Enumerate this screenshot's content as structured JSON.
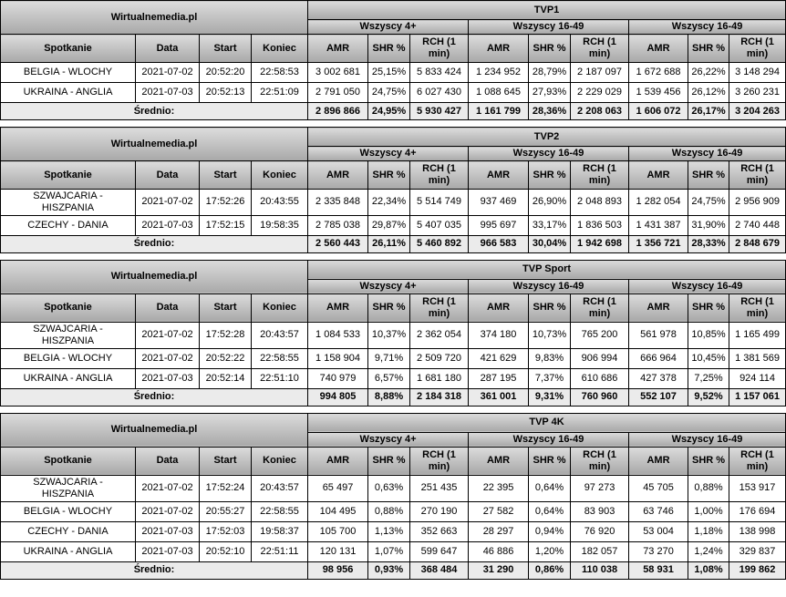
{
  "source_label": "Wirtualnemedia.pl",
  "average_label": "Średnio:",
  "groups": [
    "Wszyscy 4+",
    "Wszyscy 16-49",
    "Wszyscy 16-49"
  ],
  "columns": {
    "match": "Spotkanie",
    "date": "Data",
    "start": "Start",
    "end": "Koniec",
    "amr": "AMR",
    "shr": "SHR %",
    "rch": "RCH (1 min)"
  },
  "tables": [
    {
      "channel": "TVP1",
      "rows": [
        {
          "match": "BELGIA - WLOCHY",
          "date": "2021-07-02",
          "start": "20:52:20",
          "end": "22:58:53",
          "values": [
            "3 002 681",
            "25,15%",
            "5 833 424",
            "1 234 952",
            "28,79%",
            "2 187 097",
            "1 672 688",
            "26,22%",
            "3 148 294"
          ]
        },
        {
          "match": "UKRAINA - ANGLIA",
          "date": "2021-07-03",
          "start": "20:52:13",
          "end": "22:51:09",
          "values": [
            "2 791 050",
            "24,75%",
            "6 027 430",
            "1 088 645",
            "27,93%",
            "2 229 029",
            "1 539 456",
            "26,12%",
            "3 260 231"
          ]
        }
      ],
      "average": [
        "2 896 866",
        "24,95%",
        "5 930 427",
        "1 161 799",
        "28,36%",
        "2 208 063",
        "1 606 072",
        "26,17%",
        "3 204 263"
      ]
    },
    {
      "channel": "TVP2",
      "rows": [
        {
          "match": "SZWAJCARIA -\nHISZPANIA",
          "date": "2021-07-02",
          "start": "17:52:26",
          "end": "20:43:55",
          "values": [
            "2 335 848",
            "22,34%",
            "5 514 749",
            "937 469",
            "26,90%",
            "2 048 893",
            "1 282 054",
            "24,75%",
            "2 956 909"
          ]
        },
        {
          "match": "CZECHY - DANIA",
          "date": "2021-07-03",
          "start": "17:52:15",
          "end": "19:58:35",
          "values": [
            "2 785 038",
            "29,87%",
            "5 407 035",
            "995 697",
            "33,17%",
            "1 836 503",
            "1 431 387",
            "31,90%",
            "2 740 448"
          ]
        }
      ],
      "average": [
        "2 560 443",
        "26,11%",
        "5 460 892",
        "966 583",
        "30,04%",
        "1 942 698",
        "1 356 721",
        "28,33%",
        "2 848 679"
      ]
    },
    {
      "channel": "TVP Sport",
      "rows": [
        {
          "match": "SZWAJCARIA -\nHISZPANIA",
          "date": "2021-07-02",
          "start": "17:52:28",
          "end": "20:43:57",
          "values": [
            "1 084 533",
            "10,37%",
            "2 362 054",
            "374 180",
            "10,73%",
            "765 200",
            "561 978",
            "10,85%",
            "1 165 499"
          ]
        },
        {
          "match": "BELGIA - WLOCHY",
          "date": "2021-07-02",
          "start": "20:52:22",
          "end": "22:58:55",
          "values": [
            "1 158 904",
            "9,71%",
            "2 509 720",
            "421 629",
            "9,83%",
            "906 994",
            "666 964",
            "10,45%",
            "1 381 569"
          ]
        },
        {
          "match": "UKRAINA - ANGLIA",
          "date": "2021-07-03",
          "start": "20:52:14",
          "end": "22:51:10",
          "values": [
            "740 979",
            "6,57%",
            "1 681 180",
            "287 195",
            "7,37%",
            "610 686",
            "427 378",
            "7,25%",
            "924 114"
          ]
        }
      ],
      "average": [
        "994 805",
        "8,88%",
        "2 184 318",
        "361 001",
        "9,31%",
        "760 960",
        "552 107",
        "9,52%",
        "1 157 061"
      ]
    },
    {
      "channel": "TVP 4K",
      "rows": [
        {
          "match": "SZWAJCARIA -\nHISZPANIA",
          "date": "2021-07-02",
          "start": "17:52:24",
          "end": "20:43:57",
          "values": [
            "65 497",
            "0,63%",
            "251 435",
            "22 395",
            "0,64%",
            "97 273",
            "45 705",
            "0,88%",
            "153 917"
          ]
        },
        {
          "match": "BELGIA - WLOCHY",
          "date": "2021-07-02",
          "start": "20:55:27",
          "end": "22:58:55",
          "values": [
            "104 495",
            "0,88%",
            "270 190",
            "27 582",
            "0,64%",
            "83 903",
            "63 746",
            "1,00%",
            "176 694"
          ]
        },
        {
          "match": "CZECHY - DANIA",
          "date": "2021-07-03",
          "start": "17:52:03",
          "end": "19:58:37",
          "values": [
            "105 700",
            "1,13%",
            "352 663",
            "28 297",
            "0,94%",
            "76 920",
            "53 004",
            "1,18%",
            "138 998"
          ]
        },
        {
          "match": "UKRAINA - ANGLIA",
          "date": "2021-07-03",
          "start": "20:52:10",
          "end": "22:51:11",
          "values": [
            "120 131",
            "1,07%",
            "599 647",
            "46 886",
            "1,20%",
            "182 057",
            "73 270",
            "1,24%",
            "329 837"
          ]
        }
      ],
      "average": [
        "98 956",
        "0,93%",
        "368 484",
        "31 290",
        "0,86%",
        "110 038",
        "58 931",
        "1,08%",
        "199 862"
      ]
    }
  ]
}
